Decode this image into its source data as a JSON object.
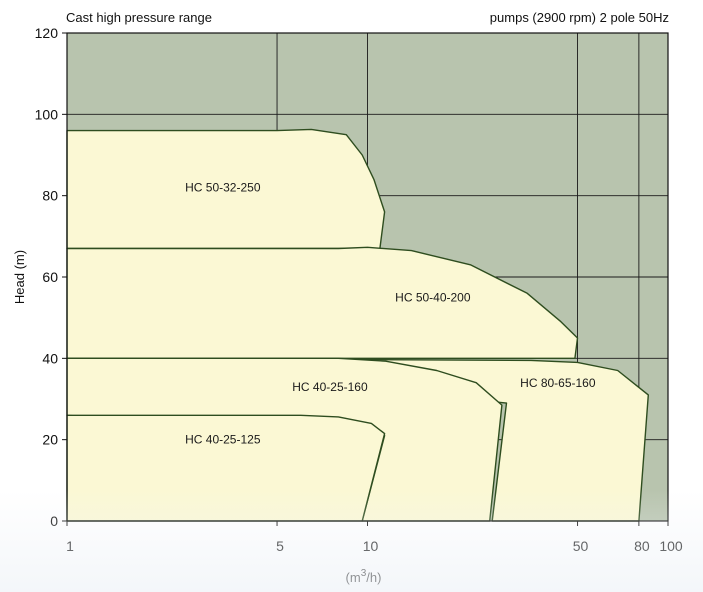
{
  "chart_data": {
    "type": "area",
    "title": "Cast high pressure range",
    "subtitle": "pumps (2900 rpm) 2 pole 50Hz",
    "xlabel_base": "(m",
    "xlabel_sup": "3",
    "xlabel_end": "/h)",
    "ylabel": "Head (m)",
    "x_scale": "log",
    "xlim": [
      1,
      100
    ],
    "ylim": [
      0,
      120
    ],
    "x_ticks": [
      {
        "value": 1,
        "label": "1"
      },
      {
        "value": 5,
        "label": "5"
      },
      {
        "value": 10,
        "label": "10"
      },
      {
        "value": 50,
        "label": "50"
      },
      {
        "value": 80,
        "label": "80"
      },
      {
        "value": 100,
        "label": "100"
      }
    ],
    "y_ticks": [
      0,
      20,
      40,
      60,
      80,
      100,
      120
    ],
    "grid": true,
    "colors": {
      "plot_bg": "#b8c4ae",
      "region_fill": "#fbf8d4",
      "region_stroke": "#2e4d1f",
      "grid": "#1a1a1a"
    },
    "series": [
      {
        "name": "HC 50-32-250",
        "label_at": [
          3.3,
          81
        ],
        "points": [
          [
            1,
            96
          ],
          [
            5,
            96
          ],
          [
            6.5,
            96.3
          ],
          [
            8.5,
            95
          ],
          [
            9.6,
            90
          ],
          [
            10.5,
            84
          ],
          [
            11.4,
            76
          ],
          [
            11.0,
            67
          ],
          [
            1,
            67
          ]
        ]
      },
      {
        "name": "HC 50-40-200",
        "label_at": [
          16.5,
          54
        ],
        "points": [
          [
            1,
            67
          ],
          [
            8,
            67
          ],
          [
            10,
            67.3
          ],
          [
            14,
            66.5
          ],
          [
            22,
            63
          ],
          [
            34,
            56
          ],
          [
            44,
            49
          ],
          [
            50,
            45
          ],
          [
            49,
            40
          ],
          [
            1,
            40
          ]
        ]
      },
      {
        "name": "HC 80-65-160",
        "label_at": [
          43,
          33
        ],
        "points": [
          [
            1,
            40
          ],
          [
            35,
            39.5
          ],
          [
            50,
            39
          ],
          [
            68,
            37
          ],
          [
            86,
            31
          ],
          [
            80,
            0
          ],
          [
            26,
            0
          ],
          [
            29,
            29
          ],
          [
            1,
            40
          ]
        ]
      },
      {
        "name": "HC 40-25-160",
        "label_at": [
          7.5,
          32
        ],
        "points": [
          [
            1,
            40
          ],
          [
            8,
            40
          ],
          [
            11.5,
            39.3
          ],
          [
            17,
            37
          ],
          [
            23,
            34
          ],
          [
            28,
            28.5
          ],
          [
            25.5,
            0
          ],
          [
            9.6,
            0
          ],
          [
            11.4,
            21
          ],
          [
            1,
            26
          ]
        ]
      },
      {
        "name": "HC 40-25-125",
        "label_at": [
          3.3,
          19
        ],
        "points": [
          [
            1,
            26
          ],
          [
            6,
            26
          ],
          [
            8,
            25.6
          ],
          [
            10.3,
            24
          ],
          [
            11.4,
            21.5
          ],
          [
            9.6,
            0
          ],
          [
            1,
            0
          ]
        ]
      }
    ]
  }
}
